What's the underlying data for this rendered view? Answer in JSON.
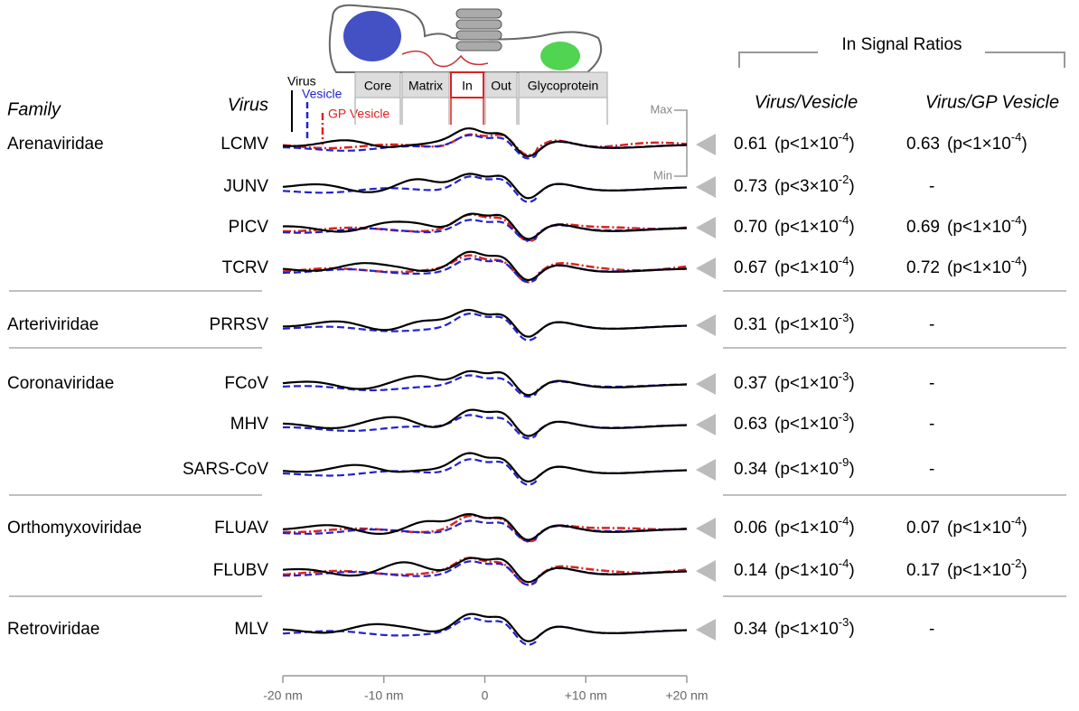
{
  "header": {
    "family": "Family",
    "virus": "Virus",
    "ratios_title": "In Signal Ratios",
    "col1": "Virus/Vesicle",
    "col2": "Virus/GP Vesicle"
  },
  "legend": {
    "virus": "Virus",
    "vesicle": "Vesicle",
    "gp_vesicle": "GP Vesicle"
  },
  "regions": [
    "Core",
    "Matrix",
    "In",
    "Out",
    "Glycoprotein"
  ],
  "scale": {
    "max": "Max",
    "min": "Min"
  },
  "axis": {
    "ticks": [
      "-20 nm",
      "-10 nm",
      "0",
      "+10 nm",
      "+20 nm"
    ]
  },
  "rows": [
    {
      "family": "Arenaviridae",
      "virus": "LCMV",
      "r1": "0.61",
      "p1": {
        "text": "(p<1×10",
        "exp": "-4",
        "end": ")"
      },
      "r2": "0.63",
      "p2": {
        "text": "(p<1×10",
        "exp": "-4",
        "end": ")"
      }
    },
    {
      "family": "",
      "virus": "JUNV",
      "r1": "0.73",
      "p1": {
        "text": "(p<3×10",
        "exp": "-2",
        "end": ")"
      },
      "r2": "-"
    },
    {
      "family": "",
      "virus": "PICV",
      "r1": "0.70",
      "p1": {
        "text": "(p<1×10",
        "exp": "-4",
        "end": ")"
      },
      "r2": "0.69",
      "p2": {
        "text": "(p<1×10",
        "exp": "-4",
        "end": ")"
      }
    },
    {
      "family": "",
      "virus": "TCRV",
      "r1": "0.67",
      "p1": {
        "text": "(p<1×10",
        "exp": "-4",
        "end": ")"
      },
      "r2": "0.72",
      "p2": {
        "text": "(p<1×10",
        "exp": "-4",
        "end": ")"
      }
    },
    {
      "family": "Arteriviridae",
      "virus": "PRRSV",
      "r1": "0.31",
      "p1": {
        "text": "(p<1×10",
        "exp": "-3",
        "end": ")"
      },
      "r2": "-"
    },
    {
      "family": "Coronaviridae",
      "virus": "FCoV",
      "r1": "0.37",
      "p1": {
        "text": "(p<1×10",
        "exp": "-3",
        "end": ")"
      },
      "r2": "-"
    },
    {
      "family": "",
      "virus": "MHV",
      "r1": "0.63",
      "p1": {
        "text": "(p<1×10",
        "exp": "-3",
        "end": ")"
      },
      "r2": "-"
    },
    {
      "family": "",
      "virus": "SARS-CoV",
      "r1": "0.34",
      "p1": {
        "text": "(p<1×10",
        "exp": "-9",
        "end": ")"
      },
      "r2": "-"
    },
    {
      "family": "Orthomyxoviridae",
      "virus": "FLUAV",
      "r1": "0.06",
      "p1": {
        "text": "(p<1×10",
        "exp": "-4",
        "end": ")"
      },
      "r2": "0.07",
      "p2": {
        "text": "(p<1×10",
        "exp": "-4",
        "end": ")"
      }
    },
    {
      "family": "",
      "virus": "FLUBV",
      "r1": "0.14",
      "p1": {
        "text": "(p<1×10",
        "exp": "-4",
        "end": ")"
      },
      "r2": "0.17",
      "p2": {
        "text": "(p<1×10",
        "exp": "-2",
        "end": ")"
      }
    },
    {
      "family": "Retroviridae",
      "virus": "MLV",
      "r1": "0.34",
      "p1": {
        "text": "(p<1×10",
        "exp": "-3",
        "end": ")"
      },
      "r2": "-"
    }
  ]
}
